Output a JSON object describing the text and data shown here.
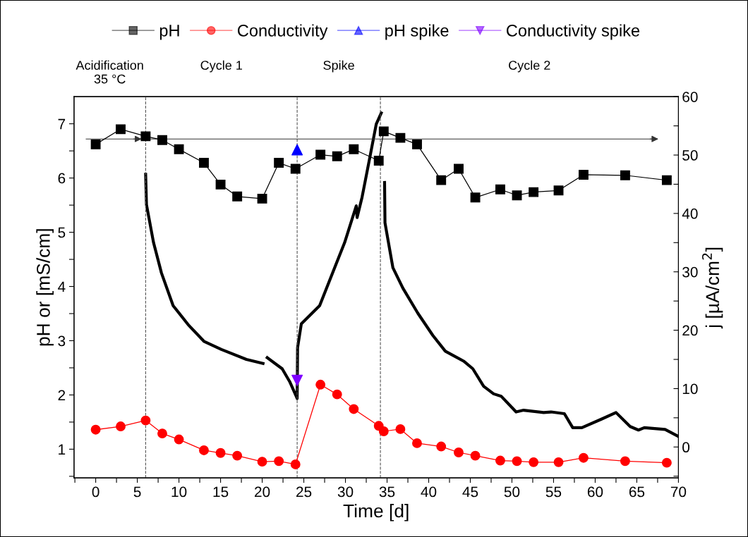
{
  "chart_data": {
    "type": "line",
    "xlabel": "Time [d]",
    "ylabel": "pH or [mS/cm]",
    "y2label": "j [µA/cm$^{2}$]",
    "xlim": [
      -2.6,
      70
    ],
    "ylim": [
      0.47,
      7.5
    ],
    "y2lim": [
      -5.3,
      60
    ],
    "xticks": [
      {
        "value": -2.5,
        "label": null
      },
      0,
      {
        "value": 2.5,
        "label": null
      },
      5,
      {
        "value": 7.5,
        "label": null
      },
      10,
      {
        "value": 12.5,
        "label": null
      },
      15,
      {
        "value": 17.5,
        "label": null
      },
      20,
      {
        "value": 22.5,
        "label": null
      },
      25,
      {
        "value": 27.5,
        "label": null
      },
      30,
      {
        "value": 32.5,
        "label": null
      },
      35,
      {
        "value": 37.5,
        "label": null
      },
      40,
      {
        "value": 42.5,
        "label": null
      },
      45,
      {
        "value": 47.5,
        "label": null
      },
      50,
      {
        "value": 52.5,
        "label": null
      },
      55,
      {
        "value": 57.5,
        "label": null
      },
      60,
      {
        "value": 62.5,
        "label": null
      },
      65,
      {
        "value": 67.5,
        "label": null
      },
      70
    ],
    "yticks": [
      {
        "value": 0.5,
        "label": null
      },
      1,
      {
        "value": 1.5,
        "label": null
      },
      2,
      {
        "value": 2.5,
        "label": null
      },
      3,
      {
        "value": 3.5,
        "label": null
      },
      4,
      {
        "value": 4.5,
        "label": null
      },
      5,
      {
        "value": 5.5,
        "label": null
      },
      6,
      {
        "value": 6.5,
        "label": null
      },
      7
    ],
    "y2ticks": [
      {
        "value": -5,
        "label": null
      },
      0,
      {
        "value": 5,
        "label": null
      },
      10,
      {
        "value": 15,
        "label": null
      },
      20,
      {
        "value": 25,
        "label": null
      },
      30,
      {
        "value": 35,
        "label": null
      },
      40,
      {
        "value": 45,
        "label": null
      },
      50,
      {
        "value": 55,
        "label": null
      },
      60
    ],
    "legend": "top",
    "grid": false,
    "series": [
      {
        "name": "pH",
        "color": "#000000",
        "marker": "square",
        "x": [
          0,
          3,
          6,
          8,
          10,
          13,
          15,
          17,
          20,
          22,
          24,
          27,
          29,
          31,
          34,
          34.6,
          36.6,
          38.6,
          41.5,
          43.6,
          45.6,
          48.6,
          50.6,
          52.6,
          55.6,
          58.6,
          63.6,
          68.6
        ],
        "values": [
          6.62,
          6.9,
          6.77,
          6.7,
          6.53,
          6.28,
          5.88,
          5.66,
          5.62,
          6.28,
          6.17,
          6.43,
          6.4,
          6.53,
          6.32,
          6.86,
          6.74,
          6.62,
          5.96,
          6.17,
          5.64,
          5.79,
          5.68,
          5.74,
          5.77,
          6.06,
          6.05,
          5.96
        ]
      },
      {
        "name": "Conductivity",
        "color": "#ff0000",
        "marker": "circle",
        "x": [
          0,
          3,
          6,
          8,
          10,
          13,
          15,
          17,
          20,
          22,
          24,
          27,
          29,
          31,
          34,
          34.6,
          36.6,
          38.6,
          41.5,
          43.6,
          45.6,
          48.6,
          50.6,
          52.6,
          55.6,
          58.6,
          63.6,
          68.6
        ],
        "values": [
          1.36,
          1.42,
          1.53,
          1.29,
          1.18,
          0.98,
          0.93,
          0.88,
          0.77,
          0.78,
          0.72,
          2.19,
          2.01,
          1.74,
          1.43,
          1.33,
          1.37,
          1.11,
          1.05,
          0.94,
          0.88,
          0.79,
          0.78,
          0.76,
          0.76,
          0.84,
          0.78,
          0.75
        ]
      },
      {
        "name": "pH spike",
        "type": "scatter",
        "color": "#0000ff",
        "marker": "triangle",
        "x": [
          24.2
        ],
        "values": [
          6.52
        ]
      },
      {
        "name": "Conductivity spike",
        "type": "scatter",
        "color": "#7f00ff",
        "marker": "triangle_down",
        "x": [
          24.2
        ],
        "values": [
          2.27
        ]
      },
      {
        "axis": "y2",
        "color": "#000000",
        "marker": "none",
        "x": [
          6.0,
          6.1,
          6.95,
          7.9,
          9.3,
          11.2,
          13.0,
          15.1,
          18.1,
          20.1,
          20.4,
          20.6,
          22.4,
          23.3,
          24.15,
          24.2,
          24.25,
          24.7,
          26.9,
          28.7,
          29.9,
          31.3,
          31.4,
          32.0,
          33.0,
          33.7,
          34.3,
          34.5,
          34.7,
          34.75,
          35.7,
          36.9,
          38.7,
          40.5,
          42.0,
          44.2,
          45.3,
          46.6,
          47.8,
          48.7,
          50.5,
          51.4,
          53.8,
          54.7,
          56.3,
          57.3,
          58.4,
          60.8,
          62.5,
          64.2,
          65.2,
          65.9,
          68.4,
          70
        ],
        "values": [
          46.7,
          41.5,
          35,
          29.8,
          24.2,
          20.8,
          18.1,
          16.7,
          15,
          14.3,
          null,
          15.3,
          13.4,
          11.2,
          8.5,
          8.3,
          17,
          21.1,
          24.2,
          30.7,
          35,
          41.3,
          39.3,
          42.8,
          50.1,
          55.3,
          57.2,
          null,
          45.3,
          38.4,
          30.7,
          27.2,
          22.9,
          19.1,
          16.4,
          14.7,
          13.4,
          10.4,
          9.1,
          8.7,
          6.0,
          6.3,
          5.9,
          6.0,
          5.7,
          3.3,
          3.3,
          4.8,
          5.9,
          3.5,
          2.9,
          3.3,
          3.0,
          1.8
        ]
      }
    ],
    "ref_lines": [
      {
        "axis": "x",
        "value": 6,
        "color": "#555555",
        "line_style": "dashed"
      },
      {
        "axis": "x",
        "value": 24.2,
        "color": "#555555",
        "line_style": "dashed"
      },
      {
        "axis": "x",
        "value": 34.2,
        "color": "#555555",
        "line_style": "dashed"
      },
      {
        "axis": "y",
        "value": 6.72,
        "color": "#333333",
        "line_style": "solid"
      }
    ],
    "annotations": [
      "Acidification\n35 °C",
      "Cycle 1",
      "Spike",
      "Cycle 2"
    ]
  }
}
